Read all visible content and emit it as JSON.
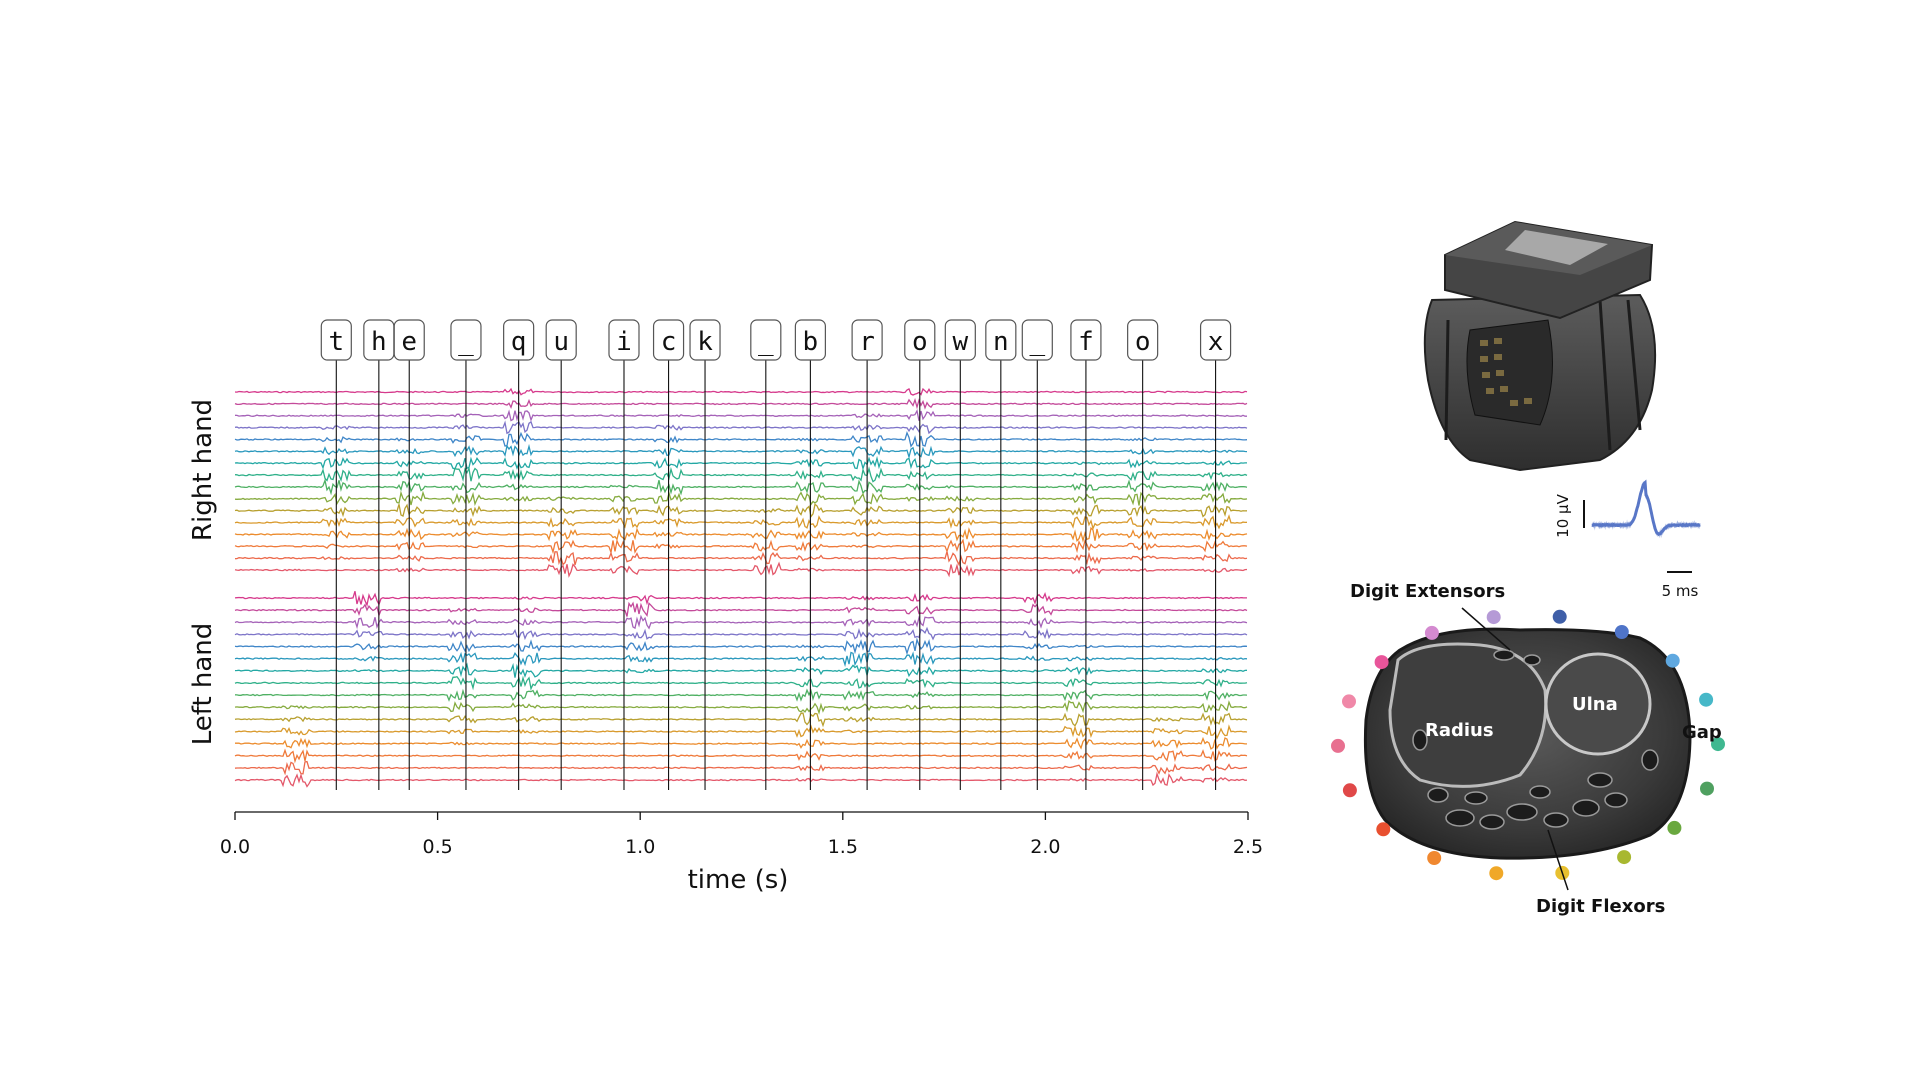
{
  "chart_data": {
    "type": "line",
    "xlabel": "time (s)",
    "xlim": [
      0.0,
      2.5
    ],
    "x_ticks": [
      "0.0",
      "0.5",
      "1.0",
      "1.5",
      "2.0",
      "2.5"
    ],
    "group_labels": [
      "Right hand",
      "Left hand"
    ],
    "keystrokes": [
      {
        "key": "t",
        "time": 0.25
      },
      {
        "key": "h",
        "time": 0.355
      },
      {
        "key": "e",
        "time": 0.43
      },
      {
        "key": "_",
        "time": 0.57
      },
      {
        "key": "q",
        "time": 0.7
      },
      {
        "key": "u",
        "time": 0.805
      },
      {
        "key": "i",
        "time": 0.96
      },
      {
        "key": "c",
        "time": 1.07
      },
      {
        "key": "k",
        "time": 1.16
      },
      {
        "key": "_",
        "time": 1.31
      },
      {
        "key": "b",
        "time": 1.42
      },
      {
        "key": "r",
        "time": 1.56
      },
      {
        "key": "o",
        "time": 1.69
      },
      {
        "key": "w",
        "time": 1.79
      },
      {
        "key": "n",
        "time": 1.89
      },
      {
        "key": "_",
        "time": 1.98
      },
      {
        "key": "f",
        "time": 2.1
      },
      {
        "key": "o",
        "time": 2.24
      },
      {
        "key": "x",
        "time": 2.42
      }
    ],
    "channels_per_hand": 16,
    "burst_times": {
      "right": [
        0.25,
        0.43,
        0.57,
        0.7,
        0.805,
        0.96,
        1.07,
        1.31,
        1.42,
        1.56,
        1.69,
        1.79,
        2.1,
        2.24,
        2.42
      ],
      "left": [
        0.15,
        0.33,
        0.56,
        0.72,
        1.0,
        1.42,
        1.54,
        1.69,
        1.98,
        2.08,
        2.3,
        2.42
      ]
    },
    "series_palette": [
      "#d63a8c",
      "#c44a9a",
      "#a562b8",
      "#7d74c8",
      "#3f86c8",
      "#2a98bd",
      "#23a8a4",
      "#2fb089",
      "#4fb063",
      "#86ab3f",
      "#b8a030",
      "#d99a2d",
      "#ec8c2e",
      "#ef7a3a",
      "#ec6a4c",
      "#e3586a"
    ]
  },
  "inset": {
    "scale_v": "10 μV",
    "scale_t": "5 ms",
    "waveform_color": "#5a78c8"
  },
  "anatomy": {
    "labels": {
      "extensors": "Digit Extensors",
      "radius": "Radius",
      "ulna": "Ulna",
      "gap": "Gap",
      "flexors": "Digit Flexors"
    },
    "electrode_colors": [
      "#e8559a",
      "#d48ad0",
      "#b59ad6",
      "#3f5fa8",
      "#4f74c8",
      "#5fa8e0",
      "#47b8c8",
      "#3fb890",
      "#4fa060",
      "#6aa83f",
      "#a8b830",
      "#e8c030",
      "#f0a828",
      "#f08830",
      "#e85030",
      "#e04848",
      "#e87090",
      "#f088a8"
    ]
  }
}
